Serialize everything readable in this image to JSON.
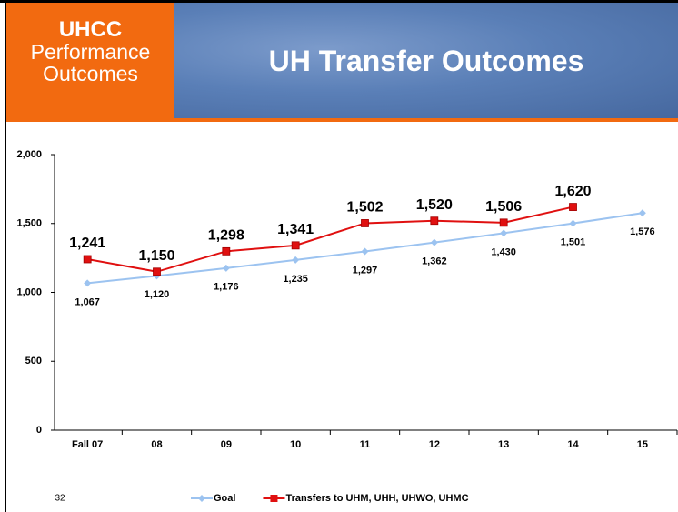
{
  "header": {
    "lines": [
      "UHCC",
      "Performance",
      "Outcomes"
    ],
    "title": "UH Transfer Outcomes"
  },
  "slide_number": "32",
  "chart_data": {
    "type": "line",
    "categories": [
      "Fall 07",
      "08",
      "09",
      "10",
      "11",
      "12",
      "13",
      "14",
      "15"
    ],
    "ylim": [
      0,
      2000
    ],
    "yticks": [
      0,
      500,
      {
        "value": 1000,
        "label": "1,000"
      },
      {
        "value": 1500,
        "label": "1,500"
      },
      {
        "value": 2000,
        "label": "2,000"
      }
    ],
    "legend": "bottom",
    "series": [
      {
        "name": "Goal",
        "color": "#9cc3f0",
        "marker": "diamond",
        "values": [
          1067,
          1120,
          1176,
          1235,
          1297,
          1362,
          1430,
          1501,
          1576
        ],
        "value_labels": [
          "1,067",
          "1,120",
          "1,176",
          "1,235",
          "1,297",
          "1,362",
          "1,430",
          "1,501",
          "1,576"
        ]
      },
      {
        "name": "Transfers to UHM, UHH, UHWO, UHMC",
        "color": "#e01010",
        "marker": "square",
        "values": [
          1241,
          1150,
          1298,
          1341,
          1502,
          1520,
          1506,
          1620,
          null
        ],
        "value_labels": [
          "1,241",
          "1,150",
          "1,298",
          "1,341",
          "1,502",
          "1,520",
          "1,506",
          "1,620",
          null
        ]
      }
    ]
  }
}
